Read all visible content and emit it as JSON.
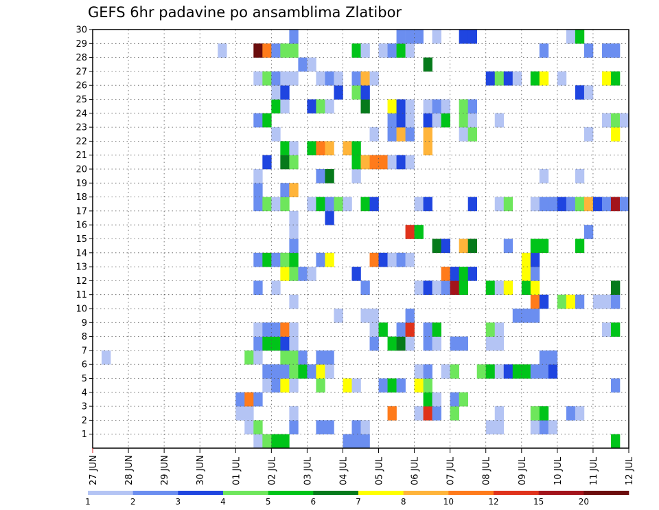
{
  "chart_data": {
    "type": "heatmap",
    "title": "GEFS 6hr padavine po ansamblima Zlatibor",
    "y_ticks": [
      "1",
      "2",
      "3",
      "4",
      "5",
      "6",
      "7",
      "8",
      "9",
      "10",
      "11",
      "12",
      "13",
      "14",
      "15",
      "16",
      "17",
      "18",
      "19",
      "20",
      "21",
      "22",
      "23",
      "24",
      "25",
      "26",
      "27",
      "28",
      "29",
      "30"
    ],
    "x_ticks": [
      "27 JUN",
      "28 JUN",
      "29 JUN",
      "30 JUN",
      "01 JUL",
      "02 JUL",
      "03 JUL",
      "04 JUL",
      "05 JUL",
      "06 JUL",
      "07 JUL",
      "08 JUL",
      "09 JUL",
      "10 JUL",
      "11 JUL",
      "12 JUL"
    ],
    "x_unit": "6-hour step (4 per day)",
    "x_range": [
      0,
      60
    ],
    "y_range": [
      0,
      30
    ],
    "colorbar": {
      "boundaries": [
        "1",
        "2",
        "3",
        "4",
        "5",
        "6",
        "7",
        "8",
        "10",
        "12",
        "15",
        "20"
      ],
      "colors": [
        "#b4c4f4",
        "#6b8ef0",
        "#1f45e0",
        "#6ee65c",
        "#00c419",
        "#067a1b",
        "#ffff00",
        "#ffb43a",
        "#ff7b1b",
        "#e0321b",
        "#a3141b",
        "#6b0d0d"
      ]
    },
    "cells": [
      [
        1,
        19,
        1
      ],
      [
        1,
        20,
        4
      ],
      [
        1,
        21,
        5
      ],
      [
        1,
        22,
        5
      ],
      [
        1,
        29,
        2
      ],
      [
        1,
        30,
        2
      ],
      [
        1,
        31,
        2
      ],
      [
        1,
        59,
        5
      ],
      [
        2,
        18,
        1
      ],
      [
        2,
        19,
        4
      ],
      [
        2,
        23,
        2
      ],
      [
        2,
        26,
        2
      ],
      [
        2,
        27,
        2
      ],
      [
        2,
        30,
        2
      ],
      [
        2,
        31,
        1
      ],
      [
        2,
        45,
        1
      ],
      [
        2,
        46,
        1
      ],
      [
        2,
        50,
        1
      ],
      [
        2,
        51,
        2
      ],
      [
        2,
        52,
        1
      ],
      [
        3,
        17,
        1
      ],
      [
        3,
        18,
        1
      ],
      [
        3,
        23,
        1
      ],
      [
        3,
        34,
        9
      ],
      [
        3,
        37,
        1
      ],
      [
        3,
        38,
        10
      ],
      [
        3,
        39,
        2
      ],
      [
        3,
        41,
        4
      ],
      [
        3,
        46,
        1
      ],
      [
        3,
        50,
        4
      ],
      [
        3,
        51,
        5
      ],
      [
        3,
        54,
        2
      ],
      [
        3,
        55,
        1
      ],
      [
        4,
        17,
        2
      ],
      [
        4,
        18,
        9
      ],
      [
        4,
        19,
        2
      ],
      [
        4,
        38,
        5
      ],
      [
        4,
        39,
        1
      ],
      [
        4,
        41,
        2
      ],
      [
        4,
        42,
        4
      ],
      [
        5,
        20,
        1
      ],
      [
        5,
        21,
        2
      ],
      [
        5,
        22,
        7
      ],
      [
        5,
        23,
        1
      ],
      [
        5,
        26,
        4
      ],
      [
        5,
        29,
        7
      ],
      [
        5,
        30,
        1
      ],
      [
        5,
        33,
        2
      ],
      [
        5,
        34,
        5
      ],
      [
        5,
        35,
        2
      ],
      [
        5,
        37,
        7
      ],
      [
        5,
        38,
        4
      ],
      [
        5,
        59,
        2
      ],
      [
        6,
        20,
        2
      ],
      [
        6,
        21,
        2
      ],
      [
        6,
        22,
        2
      ],
      [
        6,
        23,
        4
      ],
      [
        6,
        24,
        5
      ],
      [
        6,
        25,
        2
      ],
      [
        6,
        26,
        7
      ],
      [
        6,
        27,
        1
      ],
      [
        6,
        37,
        1
      ],
      [
        6,
        38,
        2
      ],
      [
        6,
        40,
        1
      ],
      [
        6,
        41,
        4
      ],
      [
        6,
        44,
        4
      ],
      [
        6,
        45,
        5
      ],
      [
        6,
        46,
        1
      ],
      [
        6,
        47,
        3
      ],
      [
        6,
        48,
        5
      ],
      [
        6,
        49,
        5
      ],
      [
        6,
        50,
        2
      ],
      [
        6,
        51,
        2
      ],
      [
        6,
        52,
        3
      ],
      [
        7,
        2,
        1
      ],
      [
        7,
        18,
        4
      ],
      [
        7,
        19,
        1
      ],
      [
        7,
        22,
        4
      ],
      [
        7,
        23,
        4
      ],
      [
        7,
        24,
        2
      ],
      [
        7,
        26,
        2
      ],
      [
        7,
        27,
        2
      ],
      [
        7,
        51,
        2
      ],
      [
        7,
        52,
        2
      ],
      [
        8,
        19,
        2
      ],
      [
        8,
        20,
        5
      ],
      [
        8,
        21,
        5
      ],
      [
        8,
        22,
        3
      ],
      [
        8,
        23,
        1
      ],
      [
        8,
        32,
        2
      ],
      [
        8,
        34,
        5
      ],
      [
        8,
        35,
        6
      ],
      [
        8,
        36,
        1
      ],
      [
        8,
        38,
        2
      ],
      [
        8,
        39,
        1
      ],
      [
        8,
        41,
        2
      ],
      [
        8,
        42,
        2
      ],
      [
        8,
        45,
        1
      ],
      [
        8,
        46,
        1
      ],
      [
        9,
        19,
        1
      ],
      [
        9,
        20,
        2
      ],
      [
        9,
        21,
        2
      ],
      [
        9,
        22,
        9
      ],
      [
        9,
        23,
        1
      ],
      [
        9,
        32,
        1
      ],
      [
        9,
        33,
        5
      ],
      [
        9,
        35,
        2
      ],
      [
        9,
        36,
        10
      ],
      [
        9,
        38,
        2
      ],
      [
        9,
        39,
        5
      ],
      [
        9,
        45,
        4
      ],
      [
        9,
        46,
        1
      ],
      [
        9,
        58,
        1
      ],
      [
        9,
        59,
        5
      ],
      [
        10,
        28,
        1
      ],
      [
        10,
        31,
        1
      ],
      [
        10,
        32,
        1
      ],
      [
        10,
        36,
        2
      ],
      [
        10,
        48,
        2
      ],
      [
        10,
        49,
        2
      ],
      [
        10,
        50,
        2
      ],
      [
        11,
        23,
        1
      ],
      [
        11,
        50,
        9
      ],
      [
        11,
        51,
        3
      ],
      [
        11,
        53,
        4
      ],
      [
        11,
        54,
        7
      ],
      [
        11,
        55,
        2
      ],
      [
        11,
        57,
        1
      ],
      [
        11,
        58,
        1
      ],
      [
        11,
        59,
        2
      ],
      [
        12,
        19,
        2
      ],
      [
        12,
        21,
        1
      ],
      [
        12,
        31,
        2
      ],
      [
        12,
        37,
        1
      ],
      [
        12,
        38,
        3
      ],
      [
        12,
        39,
        1
      ],
      [
        12,
        40,
        2
      ],
      [
        12,
        41,
        11
      ],
      [
        12,
        42,
        5
      ],
      [
        12,
        45,
        5
      ],
      [
        12,
        46,
        1
      ],
      [
        12,
        47,
        7
      ],
      [
        12,
        49,
        5
      ],
      [
        12,
        50,
        7
      ],
      [
        12,
        59,
        6
      ],
      [
        13,
        22,
        7
      ],
      [
        13,
        23,
        4
      ],
      [
        13,
        24,
        2
      ],
      [
        13,
        25,
        1
      ],
      [
        13,
        30,
        3
      ],
      [
        13,
        40,
        9
      ],
      [
        13,
        41,
        3
      ],
      [
        13,
        42,
        5
      ],
      [
        13,
        43,
        3
      ],
      [
        13,
        49,
        7
      ],
      [
        13,
        50,
        2
      ],
      [
        14,
        19,
        2
      ],
      [
        14,
        20,
        5
      ],
      [
        14,
        21,
        2
      ],
      [
        14,
        22,
        4
      ],
      [
        14,
        23,
        5
      ],
      [
        14,
        26,
        2
      ],
      [
        14,
        27,
        7
      ],
      [
        14,
        32,
        9
      ],
      [
        14,
        33,
        3
      ],
      [
        14,
        34,
        1
      ],
      [
        14,
        35,
        2
      ],
      [
        14,
        36,
        1
      ],
      [
        14,
        49,
        7
      ],
      [
        14,
        50,
        3
      ],
      [
        15,
        23,
        2
      ],
      [
        15,
        39,
        6
      ],
      [
        15,
        40,
        3
      ],
      [
        15,
        42,
        8
      ],
      [
        15,
        43,
        6
      ],
      [
        15,
        47,
        2
      ],
      [
        15,
        50,
        5
      ],
      [
        15,
        51,
        5
      ],
      [
        15,
        55,
        5
      ],
      [
        16,
        23,
        1
      ],
      [
        16,
        36,
        10
      ],
      [
        16,
        37,
        5
      ],
      [
        16,
        56,
        2
      ],
      [
        17,
        23,
        1
      ],
      [
        17,
        27,
        3
      ],
      [
        18,
        19,
        2
      ],
      [
        18,
        20,
        4
      ],
      [
        18,
        21,
        1
      ],
      [
        18,
        22,
        4
      ],
      [
        18,
        25,
        1
      ],
      [
        18,
        26,
        5
      ],
      [
        18,
        27,
        2
      ],
      [
        18,
        28,
        4
      ],
      [
        18,
        29,
        1
      ],
      [
        18,
        31,
        5
      ],
      [
        18,
        32,
        3
      ],
      [
        18,
        37,
        1
      ],
      [
        18,
        38,
        3
      ],
      [
        18,
        43,
        3
      ],
      [
        18,
        46,
        1
      ],
      [
        18,
        47,
        4
      ],
      [
        18,
        50,
        1
      ],
      [
        18,
        51,
        2
      ],
      [
        18,
        52,
        2
      ],
      [
        18,
        53,
        3
      ],
      [
        18,
        54,
        2
      ],
      [
        18,
        55,
        4
      ],
      [
        18,
        56,
        8
      ],
      [
        18,
        57,
        3
      ],
      [
        18,
        58,
        2
      ],
      [
        18,
        59,
        11
      ],
      [
        18,
        60,
        2
      ],
      [
        19,
        19,
        2
      ],
      [
        19,
        22,
        2
      ],
      [
        19,
        23,
        8
      ],
      [
        20,
        19,
        1
      ],
      [
        20,
        26,
        2
      ],
      [
        20,
        27,
        6
      ],
      [
        20,
        30,
        1
      ],
      [
        20,
        51,
        1
      ],
      [
        20,
        55,
        1
      ],
      [
        21,
        20,
        3
      ],
      [
        21,
        22,
        6
      ],
      [
        21,
        23,
        4
      ],
      [
        21,
        30,
        5
      ],
      [
        21,
        31,
        8
      ],
      [
        21,
        32,
        9
      ],
      [
        21,
        33,
        9
      ],
      [
        21,
        34,
        1
      ],
      [
        21,
        35,
        3
      ],
      [
        21,
        36,
        1
      ],
      [
        22,
        22,
        5
      ],
      [
        22,
        23,
        1
      ],
      [
        22,
        25,
        5
      ],
      [
        22,
        26,
        9
      ],
      [
        22,
        27,
        8
      ],
      [
        22,
        29,
        8
      ],
      [
        22,
        30,
        5
      ],
      [
        22,
        38,
        8
      ],
      [
        23,
        21,
        1
      ],
      [
        23,
        32,
        1
      ],
      [
        23,
        34,
        2
      ],
      [
        23,
        35,
        8
      ],
      [
        23,
        36,
        2
      ],
      [
        23,
        38,
        8
      ],
      [
        23,
        42,
        1
      ],
      [
        23,
        43,
        4
      ],
      [
        23,
        56,
        1
      ],
      [
        23,
        59,
        7
      ],
      [
        24,
        19,
        2
      ],
      [
        24,
        20,
        5
      ],
      [
        24,
        34,
        2
      ],
      [
        24,
        35,
        3
      ],
      [
        24,
        36,
        1
      ],
      [
        24,
        38,
        3
      ],
      [
        24,
        39,
        1
      ],
      [
        24,
        40,
        5
      ],
      [
        24,
        42,
        4
      ],
      [
        24,
        43,
        1
      ],
      [
        24,
        46,
        1
      ],
      [
        24,
        58,
        1
      ],
      [
        24,
        59,
        4
      ],
      [
        24,
        60,
        1
      ],
      [
        25,
        21,
        5
      ],
      [
        25,
        22,
        1
      ],
      [
        25,
        25,
        3
      ],
      [
        25,
        26,
        4
      ],
      [
        25,
        27,
        1
      ],
      [
        25,
        31,
        6
      ],
      [
        25,
        34,
        7
      ],
      [
        25,
        35,
        3
      ],
      [
        25,
        36,
        1
      ],
      [
        25,
        38,
        1
      ],
      [
        25,
        39,
        2
      ],
      [
        25,
        40,
        1
      ],
      [
        25,
        42,
        4
      ],
      [
        25,
        43,
        2
      ],
      [
        26,
        21,
        1
      ],
      [
        26,
        22,
        3
      ],
      [
        26,
        28,
        3
      ],
      [
        26,
        30,
        4
      ],
      [
        26,
        31,
        3
      ],
      [
        26,
        55,
        3
      ],
      [
        26,
        56,
        1
      ],
      [
        27,
        19,
        1
      ],
      [
        27,
        20,
        4
      ],
      [
        27,
        21,
        2
      ],
      [
        27,
        22,
        1
      ],
      [
        27,
        23,
        1
      ],
      [
        27,
        26,
        1
      ],
      [
        27,
        27,
        2
      ],
      [
        27,
        28,
        1
      ],
      [
        27,
        30,
        2
      ],
      [
        27,
        31,
        8
      ],
      [
        27,
        32,
        1
      ],
      [
        27,
        45,
        3
      ],
      [
        27,
        46,
        4
      ],
      [
        27,
        47,
        3
      ],
      [
        27,
        48,
        1
      ],
      [
        27,
        50,
        5
      ],
      [
        27,
        51,
        7
      ],
      [
        27,
        53,
        1
      ],
      [
        27,
        58,
        7
      ],
      [
        27,
        59,
        5
      ],
      [
        28,
        24,
        2
      ],
      [
        28,
        25,
        1
      ],
      [
        28,
        38,
        6
      ],
      [
        29,
        15,
        1
      ],
      [
        29,
        19,
        12
      ],
      [
        29,
        20,
        9
      ],
      [
        29,
        21,
        2
      ],
      [
        29,
        22,
        4
      ],
      [
        29,
        23,
        4
      ],
      [
        29,
        30,
        5
      ],
      [
        29,
        31,
        1
      ],
      [
        29,
        33,
        1
      ],
      [
        29,
        34,
        2
      ],
      [
        29,
        35,
        5
      ],
      [
        29,
        36,
        1
      ],
      [
        29,
        51,
        2
      ],
      [
        29,
        56,
        2
      ],
      [
        29,
        58,
        2
      ],
      [
        29,
        59,
        2
      ],
      [
        30,
        23,
        2
      ],
      [
        30,
        35,
        2
      ],
      [
        30,
        36,
        2
      ],
      [
        30,
        37,
        2
      ],
      [
        30,
        39,
        1
      ],
      [
        30,
        42,
        3
      ],
      [
        30,
        43,
        3
      ],
      [
        30,
        54,
        1
      ],
      [
        30,
        55,
        5
      ]
    ]
  }
}
